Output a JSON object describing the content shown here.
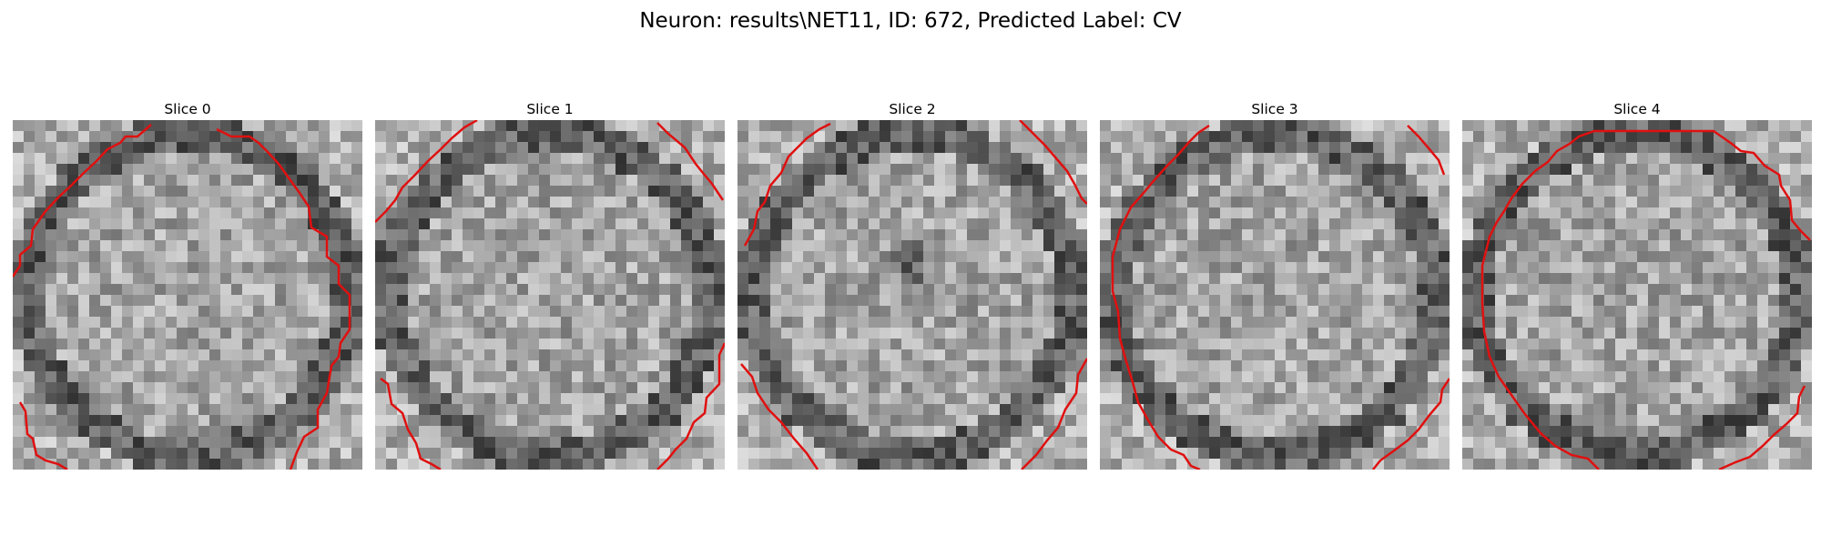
{
  "figure": {
    "title": "Neuron: results\\NET11, ID: 672, Predicted Label: CV"
  },
  "panels": [
    {
      "title": "Slice 0",
      "grid_size": 32,
      "seed": 11,
      "dark_center": false,
      "contour_color": "#e01010"
    },
    {
      "title": "Slice 1",
      "grid_size": 32,
      "seed": 23,
      "dark_center": false,
      "contour_color": "#e01010"
    },
    {
      "title": "Slice 2",
      "grid_size": 32,
      "seed": 37,
      "dark_center": true,
      "contour_color": "#e01010"
    },
    {
      "title": "Slice 3",
      "grid_size": 32,
      "seed": 51,
      "dark_center": false,
      "contour_color": "#e01010"
    },
    {
      "title": "Slice 4",
      "grid_size": 32,
      "seed": 67,
      "dark_center": false,
      "contour_color": "#e01010"
    }
  ],
  "colormap": "gray"
}
